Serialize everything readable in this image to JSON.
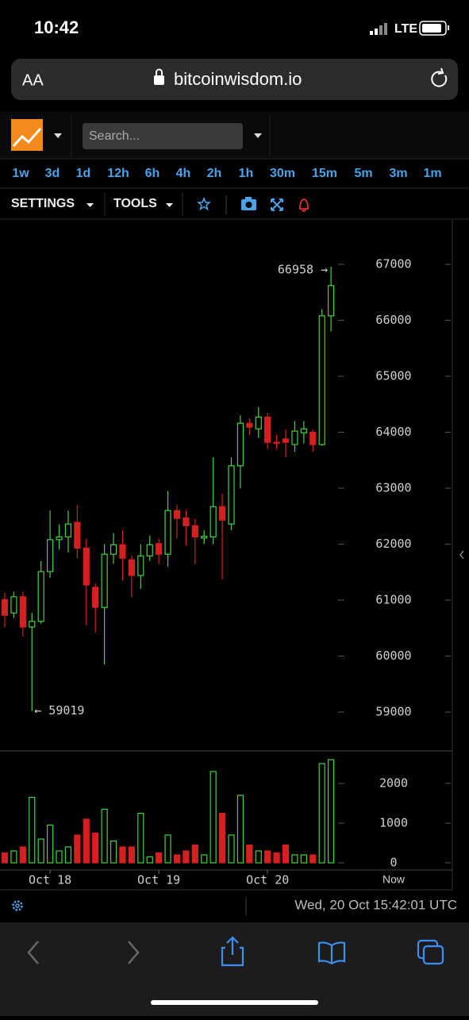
{
  "status_bar": {
    "time": "10:42",
    "network": "LTE"
  },
  "address_bar": {
    "text_size": "AA",
    "url": "bitcoinwisdom.io"
  },
  "toolbar": {
    "search_placeholder": "Search...",
    "intervals": [
      "1w",
      "3d",
      "1d",
      "12h",
      "6h",
      "4h",
      "2h",
      "1h",
      "30m",
      "15m",
      "5m",
      "3m",
      "1m"
    ],
    "selected_interval": 6,
    "settings": "SETTINGS",
    "tools": "TOOLS"
  },
  "chart_data": {
    "type": "candlestick",
    "categories": [
      null,
      null,
      null,
      null,
      null,
      "Oct 18",
      null,
      null,
      null,
      null,
      null,
      null,
      null,
      null,
      null,
      null,
      null,
      "Oct 19",
      null,
      null,
      null,
      null,
      null,
      null,
      null,
      null,
      null,
      null,
      null,
      "Oct 20",
      null,
      null,
      null,
      null,
      null,
      null,
      null
    ],
    "now_label": "Now",
    "open": [
      61010,
      60770,
      61060,
      60520,
      60620,
      61510,
      62080,
      62130,
      62390,
      61930,
      61230,
      60870,
      61820,
      61990,
      61720,
      61440,
      61790,
      62010,
      61820,
      62600,
      62470,
      62330,
      62110,
      62130,
      62670,
      62360,
      63400,
      64160,
      64060,
      64270,
      63820,
      63880,
      63780,
      63990,
      64000,
      63780,
      66080
    ],
    "high": [
      61130,
      61150,
      61150,
      60770,
      61700,
      62600,
      62350,
      62600,
      62700,
      62100,
      61300,
      62000,
      62200,
      62250,
      61800,
      62000,
      62150,
      62100,
      62950,
      62700,
      62600,
      62450,
      62250,
      63550,
      62900,
      63550,
      64300,
      64250,
      64450,
      64350,
      63950,
      64050,
      64200,
      64200,
      64050,
      66200,
      66958
    ],
    "low": [
      60520,
      60680,
      60350,
      59019,
      60580,
      61400,
      61900,
      61850,
      61750,
      60550,
      60420,
      59850,
      61650,
      61350,
      61050,
      61200,
      61700,
      61650,
      61600,
      62100,
      61980,
      61650,
      62000,
      62000,
      61370,
      62250,
      63000,
      63950,
      63900,
      63700,
      63700,
      63550,
      63650,
      63800,
      63650,
      63760,
      65800
    ],
    "close": [
      60730,
      61060,
      60520,
      60620,
      61510,
      62080,
      62130,
      62360,
      61930,
      61270,
      60870,
      61820,
      61990,
      61750,
      61440,
      61790,
      61990,
      61820,
      62600,
      62460,
      62330,
      62130,
      62140,
      62670,
      62430,
      63400,
      64160,
      64090,
      64270,
      63820,
      63800,
      63820,
      64020,
      64060,
      63780,
      66080,
      66620
    ],
    "volume": [
      250,
      300,
      400,
      1650,
      600,
      950,
      300,
      400,
      700,
      1100,
      750,
      1350,
      550,
      400,
      400,
      1250,
      150,
      250,
      700,
      200,
      300,
      450,
      200,
      2300,
      1250,
      700,
      1700,
      450,
      300,
      300,
      250,
      450,
      200,
      200,
      200,
      2500,
      2600
    ],
    "up_color": "#3fd43f",
    "down_color": "#d42020",
    "ylim": [
      58320,
      67780
    ],
    "yticks": [
      59000,
      60000,
      61000,
      62000,
      63000,
      64000,
      65000,
      66000,
      67000
    ],
    "y2lim": [
      -160,
      2800
    ],
    "y2ticks": [
      0,
      1000,
      2000
    ],
    "annotations": [
      {
        "value": 66958,
        "label": "66958 →"
      },
      {
        "value": 59019,
        "label": "← 59019"
      }
    ]
  },
  "footer": {
    "timestamp": "Wed, 20 Oct 15:42:01 UTC"
  }
}
